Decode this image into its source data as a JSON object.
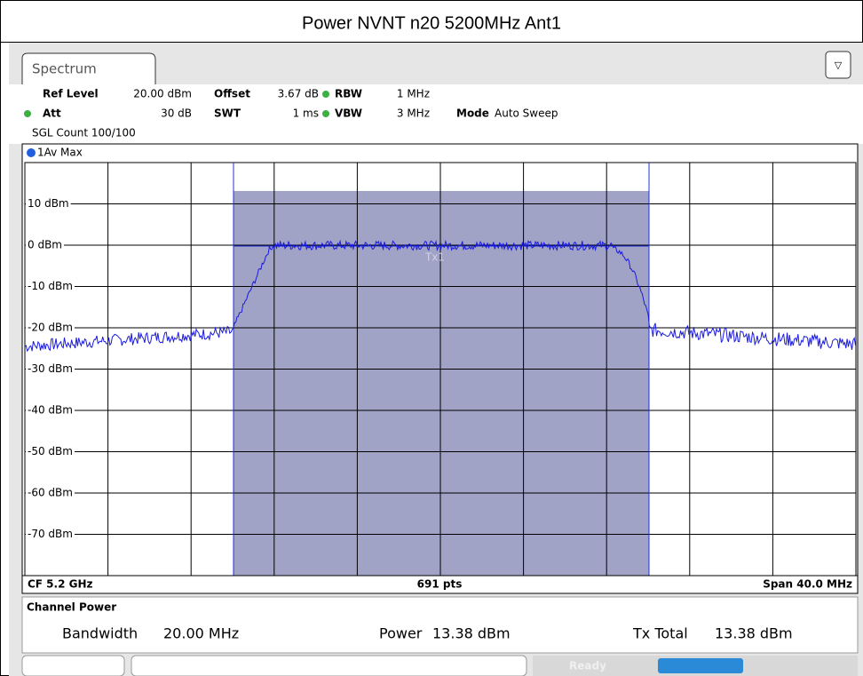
{
  "header": {
    "title": "Power NVNT n20 5200MHz Ant1"
  },
  "tab": {
    "label": "Spectrum"
  },
  "settings": {
    "ref_level": {
      "label": "Ref Level",
      "value": "20.00 dBm"
    },
    "offset": {
      "label": "Offset",
      "value": "3.67 dB"
    },
    "rbw": {
      "label": "RBW",
      "value": "1 MHz"
    },
    "att": {
      "label": "Att",
      "value": "30 dB"
    },
    "swt": {
      "label": "SWT",
      "value": "1 ms"
    },
    "vbw": {
      "label": "VBW",
      "value": "3 MHz"
    },
    "mode": {
      "label": "Mode",
      "value": "Auto Sweep"
    },
    "sgl_count": "SGL Count 100/100"
  },
  "graph": {
    "trace_label": "1Av Max",
    "y_axis_labels": [
      "10 dBm",
      "0 dBm",
      "-10 dBm",
      "-20 dBm",
      "-30 dBm",
      "-40 dBm",
      "-50 dBm",
      "-60 dBm",
      "-70 dBm"
    ],
    "marker": "Tx1",
    "footer": {
      "cf": "CF 5.2 GHz",
      "points": "691 pts",
      "span": "Span 40.0 MHz"
    }
  },
  "channel_power": {
    "title": "Channel Power",
    "bandwidth": {
      "label": "Bandwidth",
      "value": "20.00 MHz"
    },
    "power": {
      "label": "Power",
      "value": "13.38 dBm"
    },
    "tx_total": {
      "label": "Tx Total",
      "value": "13.38 dBm"
    }
  },
  "status": {
    "state": "Ready"
  }
}
